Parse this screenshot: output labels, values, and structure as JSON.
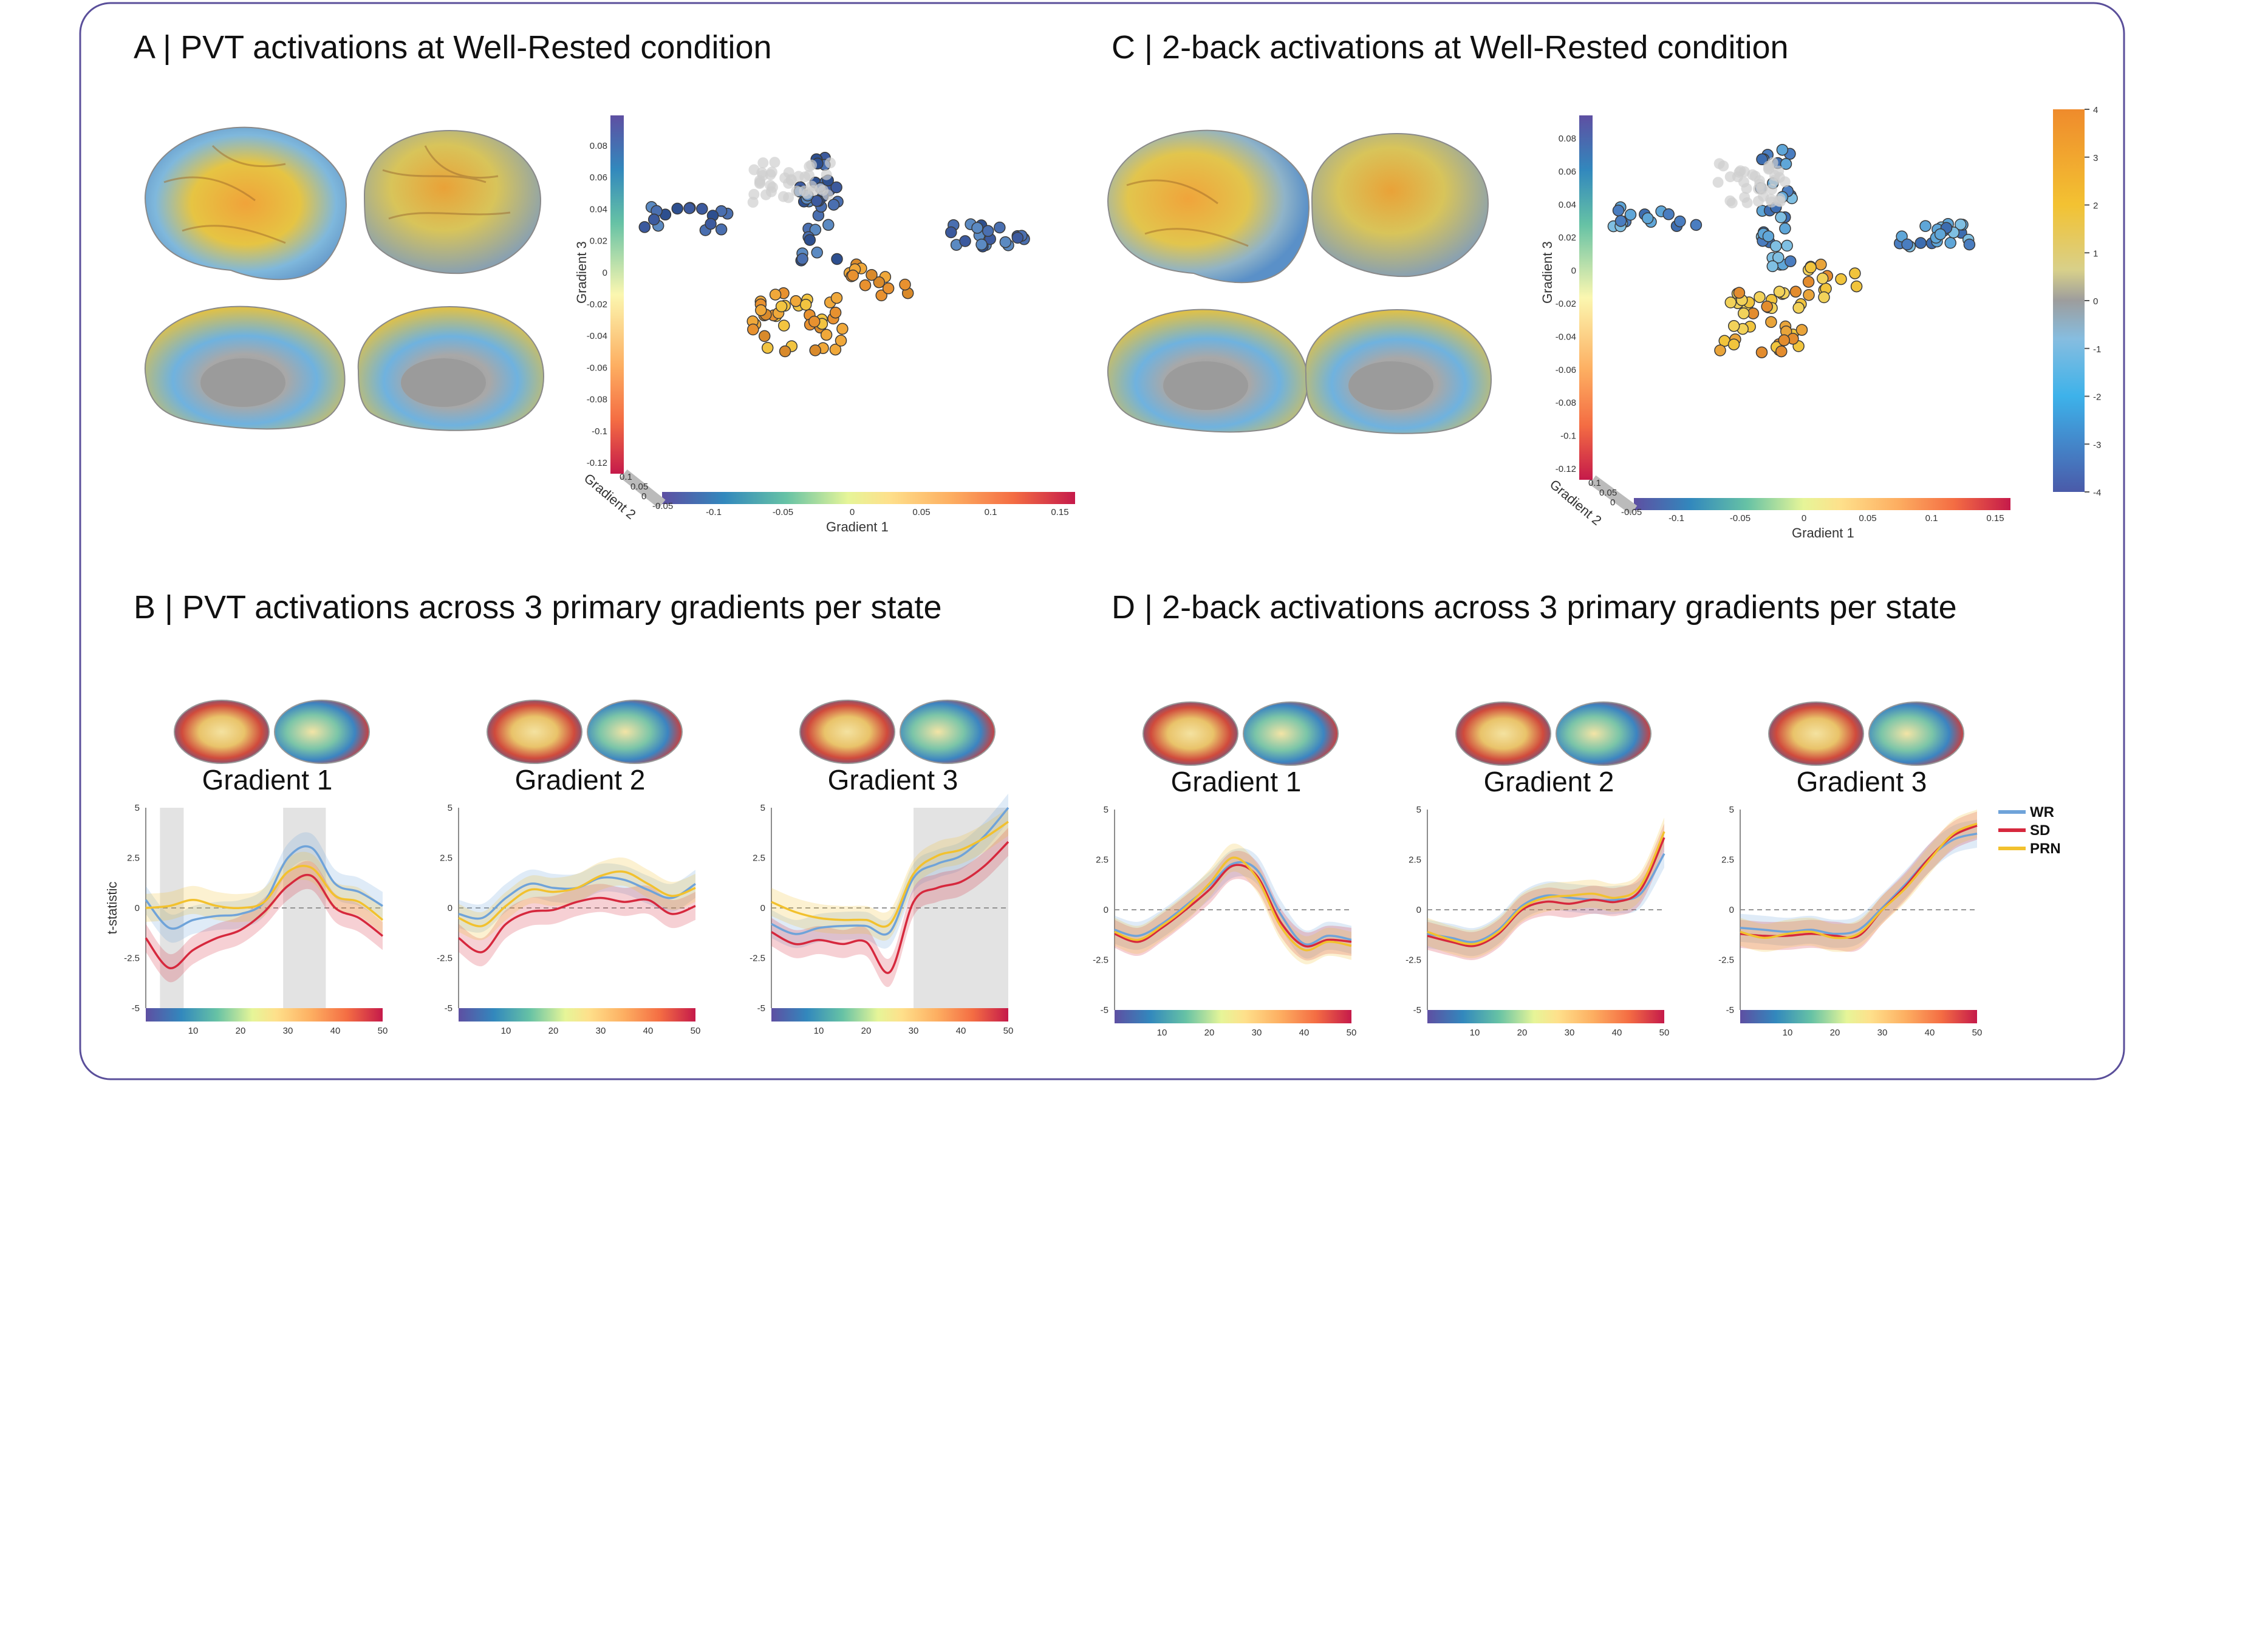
{
  "panels": {
    "A": {
      "title": "A | PVT activations at Well-Rested condition"
    },
    "B": {
      "title": "B | PVT activations across 3 primary gradients per state"
    },
    "C": {
      "title": "C | 2-back activations at Well-Rested condition"
    },
    "D": {
      "title": "D | 2-back activations across 3 primary gradients per state"
    }
  },
  "scatter_axes": {
    "xlabel": "Gradient 1",
    "ylabel": "Gradient 3",
    "zlabel": "Gradient 2",
    "x_ticks": [
      "-0.1",
      "-0.05",
      "0",
      "0.05",
      "0.1",
      "0.15"
    ],
    "z_ticks": [
      "0.1",
      "0.05",
      "0",
      "-0.05"
    ],
    "A_y_ticks": [
      "0.08",
      "0.06",
      "0.04",
      "0.02",
      "0",
      "-0.02",
      "-0.04",
      "-0.06",
      "-0.08",
      "-0.1",
      "-0.12"
    ],
    "C_y_ticks": [
      "0.08",
      "0.06",
      "0.04",
      "0.02",
      "0",
      "-0.02",
      "-0.04",
      "-0.06",
      "-0.08",
      "-0.1",
      "-0.12"
    ]
  },
  "activation_colorbar": {
    "ticks": [
      "4",
      "3",
      "2",
      "1",
      "0",
      "-1",
      "-2",
      "-3",
      "-4"
    ],
    "colors": [
      "#ef8b2c",
      "#f3b631",
      "#e9d14a",
      "#d9d48c",
      "#9c9c9c",
      "#7fb6d8",
      "#3fb0e6",
      "#3c8fd2",
      "#4a5fae"
    ]
  },
  "gradient_axis": {
    "ylabel": "t-statistic",
    "y_ticks": [
      "5",
      "2.5",
      "0",
      "-2.5",
      "-5"
    ],
    "x_ticks": [
      "10",
      "20",
      "30",
      "40",
      "50"
    ],
    "titles": [
      "Gradient 1",
      "Gradient 2",
      "Gradient 3"
    ]
  },
  "legend": {
    "items": [
      {
        "label": "WR",
        "color": "#6fa3d9"
      },
      {
        "label": "SD",
        "color": "#d6283d"
      },
      {
        "label": "PRN",
        "color": "#f2c12e"
      }
    ]
  },
  "chart_data": [
    {
      "type": "line",
      "panel": "B",
      "title": "Gradient 1",
      "ylabel": "t-statistic",
      "x": [
        0,
        5,
        10,
        15,
        20,
        25,
        30,
        35,
        40,
        45,
        50
      ],
      "ylim": [
        -5,
        5
      ],
      "series": [
        {
          "name": "WR",
          "values": [
            0.4,
            -1.0,
            -0.6,
            -0.4,
            -0.3,
            0.3,
            2.5,
            3.0,
            1.2,
            0.8,
            0.1
          ]
        },
        {
          "name": "SD",
          "values": [
            -1.5,
            -3.0,
            -2.1,
            -1.5,
            -1.1,
            -0.2,
            1.1,
            1.6,
            0.0,
            -0.5,
            -1.4
          ]
        },
        {
          "name": "PRN",
          "values": [
            0.0,
            0.1,
            0.4,
            0.1,
            0.0,
            0.3,
            1.8,
            2.0,
            0.6,
            0.3,
            -0.6
          ]
        }
      ],
      "shaded_x": [
        [
          3,
          8
        ],
        [
          29,
          38
        ]
      ]
    },
    {
      "type": "line",
      "panel": "B",
      "title": "Gradient 2",
      "ylabel": "t-statistic",
      "x": [
        0,
        5,
        10,
        15,
        20,
        25,
        30,
        35,
        40,
        45,
        50
      ],
      "ylim": [
        -5,
        5
      ],
      "series": [
        {
          "name": "WR",
          "values": [
            -0.3,
            -0.5,
            0.5,
            1.2,
            1.0,
            1.0,
            1.5,
            1.4,
            0.9,
            0.5,
            1.2
          ]
        },
        {
          "name": "SD",
          "values": [
            -1.5,
            -2.2,
            -0.8,
            -0.2,
            -0.1,
            0.3,
            0.5,
            0.3,
            0.4,
            -0.3,
            0.1
          ]
        },
        {
          "name": "PRN",
          "values": [
            -0.5,
            -0.9,
            0.1,
            0.9,
            0.8,
            1.0,
            1.6,
            1.8,
            1.2,
            0.6,
            1.0
          ]
        }
      ],
      "shaded_x": []
    },
    {
      "type": "line",
      "panel": "B",
      "title": "Gradient 3",
      "ylabel": "t-statistic",
      "x": [
        0,
        5,
        10,
        15,
        20,
        25,
        30,
        35,
        40,
        45,
        50
      ],
      "ylim": [
        -5,
        5
      ],
      "series": [
        {
          "name": "WR",
          "values": [
            -0.8,
            -1.3,
            -1.0,
            -0.9,
            -0.9,
            -1.2,
            1.5,
            2.2,
            2.6,
            3.6,
            5.0
          ]
        },
        {
          "name": "SD",
          "values": [
            -1.2,
            -1.8,
            -1.6,
            -1.8,
            -1.7,
            -3.2,
            0.3,
            1.0,
            1.3,
            2.1,
            3.3
          ]
        },
        {
          "name": "PRN",
          "values": [
            0.3,
            -0.2,
            -0.5,
            -0.6,
            -0.6,
            -0.8,
            1.7,
            2.6,
            2.9,
            3.5,
            4.3
          ]
        }
      ],
      "shaded_x": [
        [
          30,
          50
        ]
      ]
    },
    {
      "type": "line",
      "panel": "D",
      "title": "Gradient 1",
      "ylabel": "t-statistic",
      "x": [
        0,
        5,
        10,
        15,
        20,
        25,
        30,
        35,
        40,
        45,
        50
      ],
      "ylim": [
        -5,
        5
      ],
      "series": [
        {
          "name": "WR",
          "values": [
            -1.0,
            -1.3,
            -0.7,
            0.2,
            1.2,
            2.3,
            2.0,
            -0.2,
            -1.7,
            -1.3,
            -1.5
          ]
        },
        {
          "name": "SD",
          "values": [
            -1.2,
            -1.6,
            -0.9,
            0.0,
            1.0,
            2.2,
            1.7,
            -0.6,
            -1.8,
            -1.5,
            -1.6
          ]
        },
        {
          "name": "PRN",
          "values": [
            -1.1,
            -1.5,
            -0.8,
            0.1,
            1.3,
            2.6,
            1.6,
            -0.8,
            -2.0,
            -1.6,
            -1.8
          ]
        }
      ],
      "shaded_x": []
    },
    {
      "type": "line",
      "panel": "D",
      "title": "Gradient 2",
      "ylabel": "t-statistic",
      "x": [
        0,
        5,
        10,
        15,
        20,
        25,
        30,
        35,
        40,
        45,
        50
      ],
      "ylim": [
        -5,
        5
      ],
      "series": [
        {
          "name": "WR",
          "values": [
            -1.2,
            -1.4,
            -1.6,
            -1.0,
            0.2,
            0.7,
            0.6,
            0.5,
            0.5,
            0.8,
            2.8
          ]
        },
        {
          "name": "SD",
          "values": [
            -1.3,
            -1.6,
            -1.8,
            -1.2,
            0.0,
            0.4,
            0.3,
            0.5,
            0.4,
            1.0,
            3.6
          ]
        },
        {
          "name": "PRN",
          "values": [
            -1.1,
            -1.5,
            -1.7,
            -1.1,
            0.1,
            0.6,
            0.7,
            0.8,
            0.6,
            1.2,
            3.9
          ]
        }
      ],
      "shaded_x": []
    },
    {
      "type": "line",
      "panel": "D",
      "title": "Gradient 3",
      "ylabel": "t-statistic",
      "x": [
        0,
        5,
        10,
        15,
        20,
        25,
        30,
        35,
        40,
        45,
        50
      ],
      "ylim": [
        -5,
        5
      ],
      "series": [
        {
          "name": "WR",
          "values": [
            -0.9,
            -1.0,
            -1.1,
            -1.0,
            -1.2,
            -1.0,
            0.1,
            1.3,
            2.6,
            3.5,
            3.8
          ]
        },
        {
          "name": "SD",
          "values": [
            -1.2,
            -1.3,
            -1.3,
            -1.2,
            -1.3,
            -1.3,
            0.0,
            1.2,
            2.6,
            3.7,
            4.2
          ]
        },
        {
          "name": "PRN",
          "values": [
            -1.1,
            -1.4,
            -1.2,
            -1.1,
            -1.4,
            -1.2,
            0.0,
            1.1,
            2.5,
            3.8,
            4.3
          ]
        }
      ],
      "shaded_x": []
    }
  ]
}
